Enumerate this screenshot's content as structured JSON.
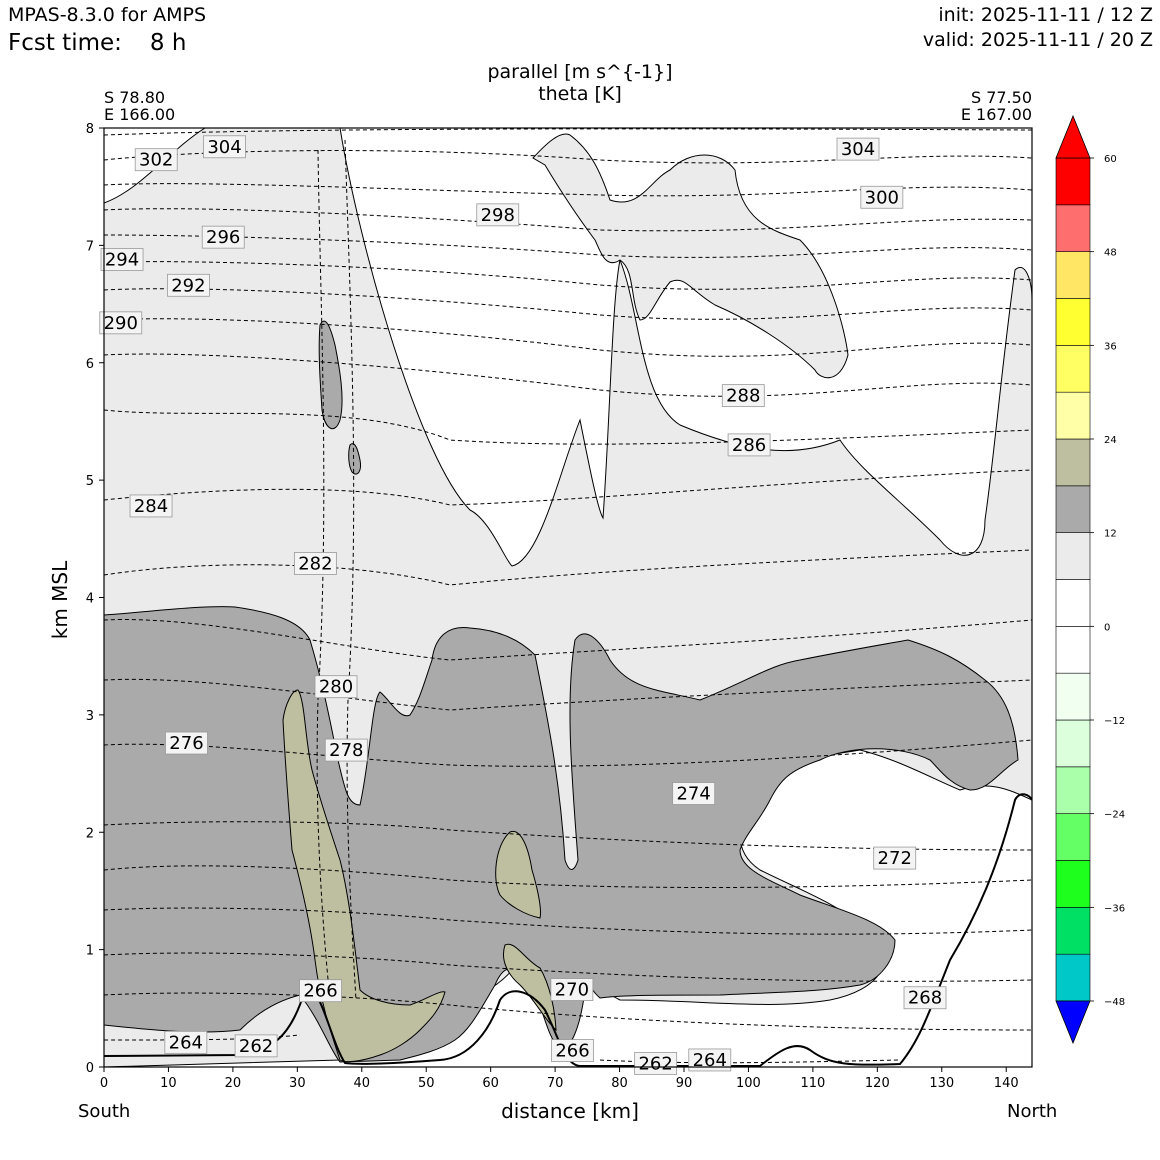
{
  "header": {
    "model": "MPAS-8.3.0 for AMPS",
    "fcst_label": "Fcst time:",
    "fcst_value": "8 h",
    "init": "init: 2025-11-11 / 12 Z",
    "valid": "valid: 2025-11-11 / 20 Z"
  },
  "corners": {
    "left_lat": "S 78.80",
    "left_lon": "E 166.00",
    "right_lat": "S 77.50",
    "right_lon": "E 167.00",
    "south": "South",
    "north": "North"
  },
  "chart_data": {
    "type": "contour",
    "title": "parallel [m s^{-1}]",
    "subtitle": "theta [K]",
    "xlabel": "distance [km]",
    "ylabel": "km MSL",
    "xlim": [
      0,
      144
    ],
    "ylim": [
      0,
      8
    ],
    "x_ticks": [
      "0",
      "10",
      "20",
      "30",
      "40",
      "50",
      "60",
      "70",
      "80",
      "90",
      "100",
      "110",
      "120",
      "130",
      "140"
    ],
    "y_ticks": [
      "0",
      "1",
      "2",
      "3",
      "4",
      "5",
      "6",
      "7",
      "8"
    ],
    "colorbar": {
      "range": [
        -54,
        66
      ],
      "step": 6,
      "tick_values": [
        -48,
        -36,
        -24,
        -12,
        0,
        12,
        24,
        36,
        48,
        60
      ],
      "tick_labels": [
        "−48",
        "−36",
        "−24",
        "−12",
        "0",
        "12",
        "24",
        "36",
        "48",
        "60"
      ],
      "colors": [
        "#0000ff",
        "#00c8c8",
        "#00e064",
        "#1eff1e",
        "#64ff64",
        "#aaffaa",
        "#dcffdc",
        "#f0fff0",
        "#ffffff",
        "#ffffff",
        "#ebebeb",
        "#aaaaaa",
        "#bebea0",
        "#ffffa8",
        "#ffff64",
        "#ffff32",
        "#ffe664",
        "#ff6e6e",
        "#ff0000",
        "#ff0000"
      ]
    },
    "theta_labels": [
      {
        "text": "304",
        "x": 18.7,
        "y": 7.84
      },
      {
        "text": "302",
        "x": 8.1,
        "y": 7.73
      },
      {
        "text": "304",
        "x": 117.0,
        "y": 7.82
      },
      {
        "text": "300",
        "x": 120.7,
        "y": 7.41
      },
      {
        "text": "298",
        "x": 61.1,
        "y": 7.26
      },
      {
        "text": "296",
        "x": 18.5,
        "y": 7.07
      },
      {
        "text": "294",
        "x": 2.8,
        "y": 6.88
      },
      {
        "text": "292",
        "x": 13.1,
        "y": 6.66
      },
      {
        "text": "290",
        "x": 2.6,
        "y": 6.34
      },
      {
        "text": "288",
        "x": 99.2,
        "y": 5.72
      },
      {
        "text": "286",
        "x": 100.1,
        "y": 5.3
      },
      {
        "text": "284",
        "x": 7.3,
        "y": 4.78
      },
      {
        "text": "282",
        "x": 32.8,
        "y": 4.29
      },
      {
        "text": "280",
        "x": 36.0,
        "y": 3.24
      },
      {
        "text": "278",
        "x": 37.6,
        "y": 2.7
      },
      {
        "text": "276",
        "x": 12.8,
        "y": 2.76
      },
      {
        "text": "274",
        "x": 91.5,
        "y": 2.33
      },
      {
        "text": "272",
        "x": 122.7,
        "y": 1.78
      },
      {
        "text": "270",
        "x": 72.6,
        "y": 0.66
      },
      {
        "text": "268",
        "x": 127.4,
        "y": 0.59
      },
      {
        "text": "266",
        "x": 33.6,
        "y": 0.65
      },
      {
        "text": "266",
        "x": 72.7,
        "y": 0.14
      },
      {
        "text": "264",
        "x": 12.7,
        "y": 0.21
      },
      {
        "text": "262",
        "x": 23.6,
        "y": 0.18
      },
      {
        "text": "262",
        "x": 85.6,
        "y": 0.03
      },
      {
        "text": "264",
        "x": 94.0,
        "y": 0.06
      }
    ]
  }
}
